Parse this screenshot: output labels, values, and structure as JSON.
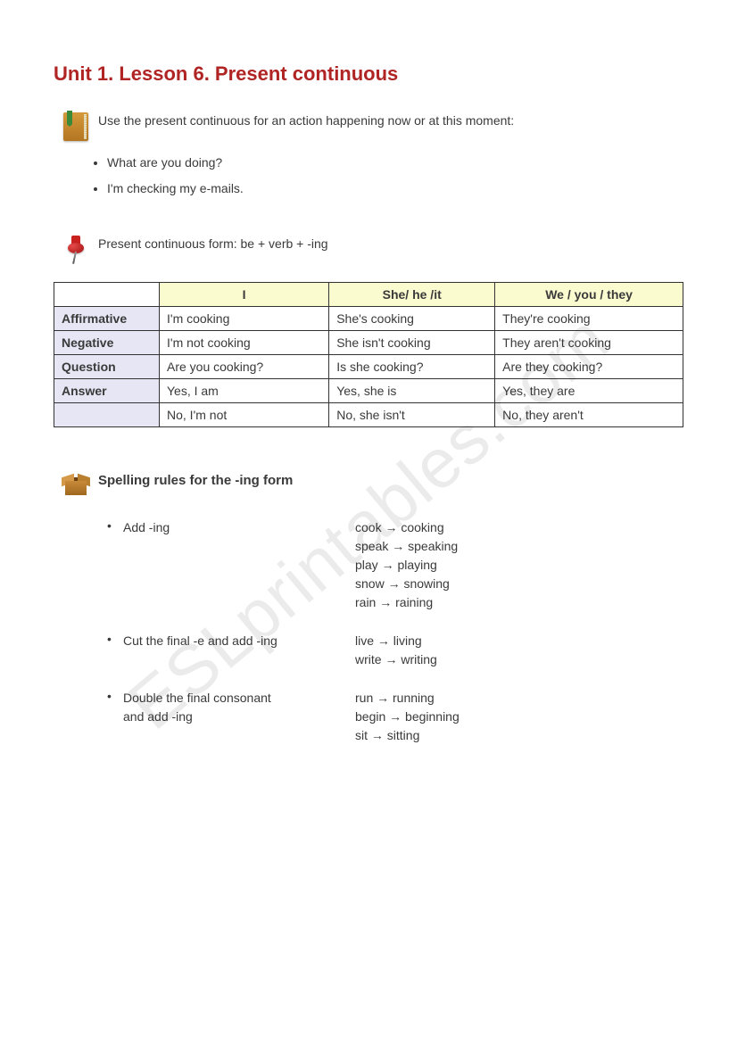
{
  "title": "Unit 1. Lesson 6. Present continuous",
  "watermark": "ESLprintables.com",
  "intro": {
    "text": "Use the present continuous for an action happening now or at this moment:",
    "bullets": [
      "What are you doing?",
      "I'm checking my e-mails."
    ]
  },
  "form_note": "Present continuous form: be + verb + -ing",
  "table": {
    "col_headers": [
      "I",
      "She/ he /it",
      "We / you / they"
    ],
    "rows": [
      {
        "label": "Affirmative",
        "cells": [
          "I'm cooking",
          "She's cooking",
          "They're cooking"
        ]
      },
      {
        "label": "Negative",
        "cells": [
          "I'm not cooking",
          "She isn't cooking",
          "They aren't cooking"
        ]
      },
      {
        "label": "Question",
        "cells": [
          "Are you cooking?",
          "Is she cooking?",
          "Are they cooking?"
        ]
      },
      {
        "label": "Answer",
        "cells": [
          "Yes, I am",
          "Yes, she is",
          "Yes, they are"
        ]
      },
      {
        "label": "",
        "cells": [
          "No, I'm not",
          "No, she isn't",
          "No, they aren't"
        ]
      }
    ],
    "header_bg": "#fbfbd0",
    "row_head_bg": "#e6e6f5",
    "border_color": "#333333"
  },
  "spelling": {
    "title": "Spelling rules for the -ing form",
    "rules": [
      {
        "label": "Add -ing",
        "examples": [
          "cook   → cooking",
          "speak → speaking",
          "play → playing",
          "snow → snowing",
          "rain → raining"
        ]
      },
      {
        "label": "Cut the final -e and add -ing",
        "examples": [
          "live → living",
          "write → writing"
        ]
      },
      {
        "label": "Double the final consonant\nand add -ing",
        "examples": [
          "run → running",
          "begin → beginning",
          "sit → sitting"
        ]
      }
    ]
  },
  "colors": {
    "title": "#b02424",
    "text": "#3a3a3a",
    "background": "#ffffff"
  }
}
